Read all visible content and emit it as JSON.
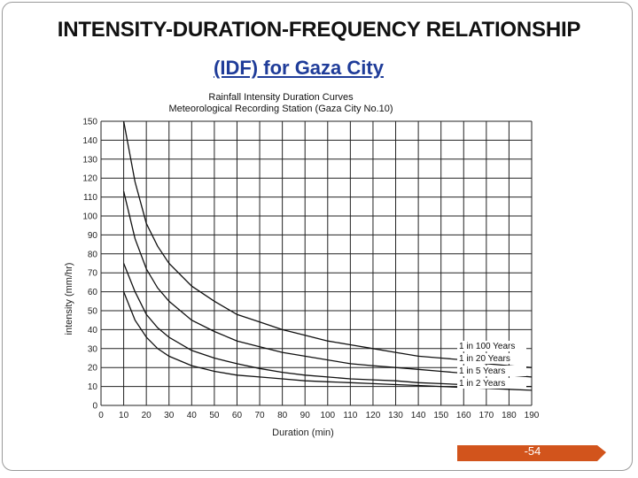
{
  "slide": {
    "title": "INTENSITY-DURATION-FREQUENCY RELATIONSHIP",
    "subtitle": "(IDF) for Gaza City",
    "page_number": "-54",
    "accent_color": "#d2541c",
    "subtitle_color": "#1f3c99"
  },
  "chart_data": {
    "type": "line",
    "title": "Rainfall Intensity Duration Curves",
    "subtitle": "Meteorological Recording Station (Gaza City No.10)",
    "xlabel": "Duration (min)",
    "ylabel": "intensity (mm/hr)",
    "xlim": [
      0,
      190
    ],
    "ylim": [
      0,
      150
    ],
    "xticks": [
      0,
      10,
      20,
      30,
      40,
      50,
      60,
      70,
      80,
      90,
      100,
      110,
      120,
      130,
      140,
      150,
      160,
      170,
      180,
      190
    ],
    "yticks": [
      0,
      10,
      20,
      30,
      40,
      50,
      60,
      70,
      80,
      90,
      100,
      110,
      120,
      130,
      140,
      150
    ],
    "grid": true,
    "legend": "inline-right",
    "x": [
      10,
      15,
      20,
      25,
      30,
      40,
      50,
      60,
      70,
      80,
      90,
      100,
      110,
      120,
      130,
      140,
      150,
      160,
      170,
      180,
      190
    ],
    "series": [
      {
        "name": "1 in 100 Years",
        "values": [
          150,
          118,
          96,
          84,
          75,
          63,
          55,
          48,
          44,
          40,
          37,
          34,
          32,
          30,
          28,
          26,
          25,
          24,
          22,
          21,
          20
        ]
      },
      {
        "name": "1 in 20 Years",
        "values": [
          113,
          88,
          72,
          62,
          55,
          45,
          39,
          34,
          31,
          28,
          26,
          24,
          22,
          21,
          20,
          19,
          18,
          17,
          17,
          16,
          15
        ]
      },
      {
        "name": "1 in 5 Years",
        "values": [
          75,
          60,
          48,
          41,
          36,
          29,
          25,
          22,
          19.5,
          17.5,
          16,
          15,
          14,
          13.5,
          13,
          12,
          11.5,
          11,
          10.5,
          10,
          10
        ]
      },
      {
        "name": "1 in 2 Years",
        "values": [
          60,
          45,
          36,
          30,
          26,
          21,
          18,
          16,
          15,
          14,
          13,
          12.5,
          12,
          11.5,
          11,
          10.5,
          10,
          9.5,
          9,
          8.5,
          8
        ]
      }
    ]
  }
}
